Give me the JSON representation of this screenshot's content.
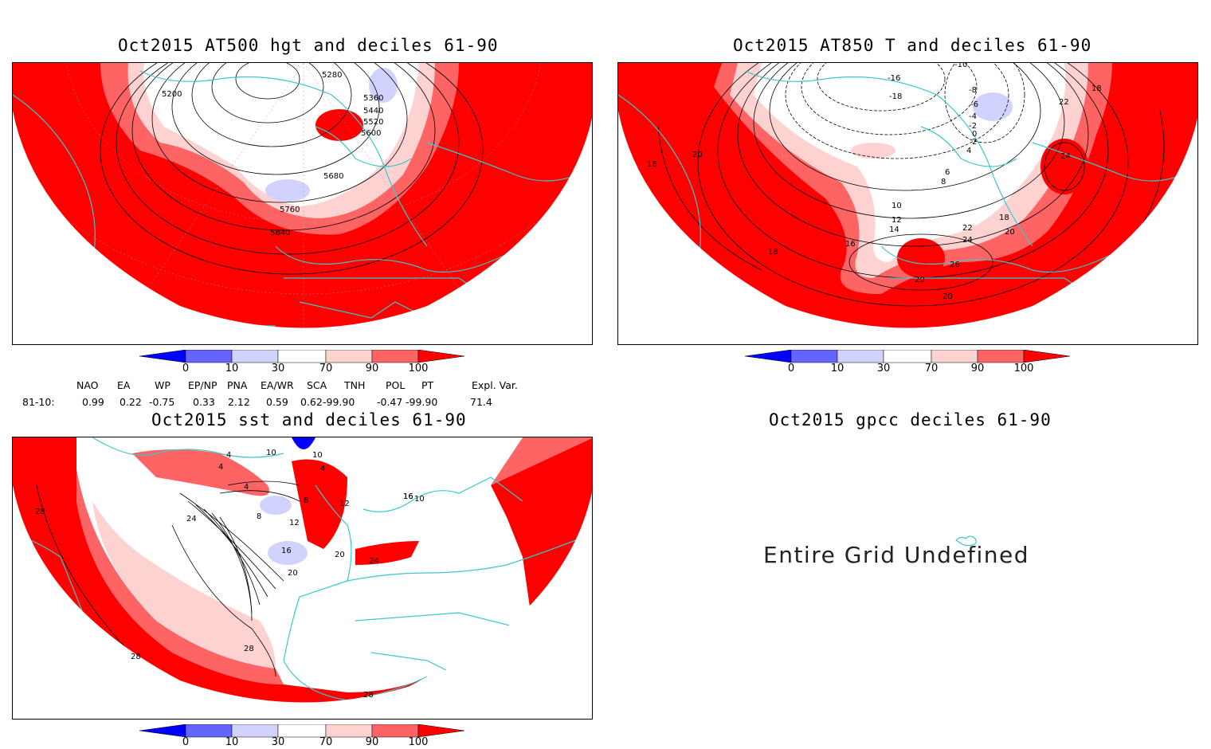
{
  "panels": {
    "p1": {
      "title": "Oct2015 AT500 hgt and deciles 61-90",
      "contour_labels": [
        "5200",
        "5280",
        "5360",
        "5440",
        "5520",
        "5600",
        "5680",
        "5760",
        "5840"
      ]
    },
    "p2": {
      "title": "Oct2015 AT850 T and deciles 61-90",
      "contour_labels": [
        "-10",
        "-16",
        "-18",
        "-8",
        "-6",
        "-4",
        "-2",
        "0",
        "2",
        "4",
        "6",
        "8",
        "10",
        "12",
        "14",
        "16",
        "18",
        "20",
        "22",
        "24",
        "26",
        "18",
        "20",
        "18",
        "18",
        "20",
        "22",
        "24",
        "20"
      ]
    },
    "p3": {
      "title": "Oct2015 sst and deciles 61-90",
      "contour_labels": [
        "4",
        "4",
        "10",
        "10",
        "4",
        "4",
        "8",
        "12",
        "8",
        "12",
        "16",
        "16",
        "20",
        "24",
        "20",
        "24",
        "28",
        "28",
        "28",
        "28",
        "16",
        "10"
      ]
    },
    "p4": {
      "title": "Oct2015 gpcc deciles 61-90",
      "message": "Entire Grid Undefined"
    }
  },
  "colorbar": {
    "labels": [
      "0",
      "10",
      "30",
      "70",
      "90",
      "100"
    ],
    "colors": [
      "#0000ff",
      "#6464ff",
      "#d2d2ff",
      "#ffffff",
      "#ffd2d2",
      "#ff6464",
      "#ff0000"
    ]
  },
  "indices": {
    "headers": [
      "NAO",
      "EA",
      "WP",
      "EP/NP",
      "PNA",
      "EA/WR",
      "SCA",
      "TNH",
      "POL",
      "PT",
      "Expl. Var."
    ],
    "row_label": "81-10:",
    "values": [
      "0.99",
      "0.22",
      "-0.75",
      "0.33",
      "2.12",
      "0.59",
      "0.62",
      "-99.90",
      "-0.47",
      "-99.90",
      "71.4"
    ]
  },
  "colors": {
    "coast": "#3cc8c8",
    "strong_red": "#ff0000",
    "mid_red": "#ff6464",
    "light_red": "#ffd2d2",
    "light_blue": "#d2d2ff",
    "blue": "#0000ff"
  }
}
